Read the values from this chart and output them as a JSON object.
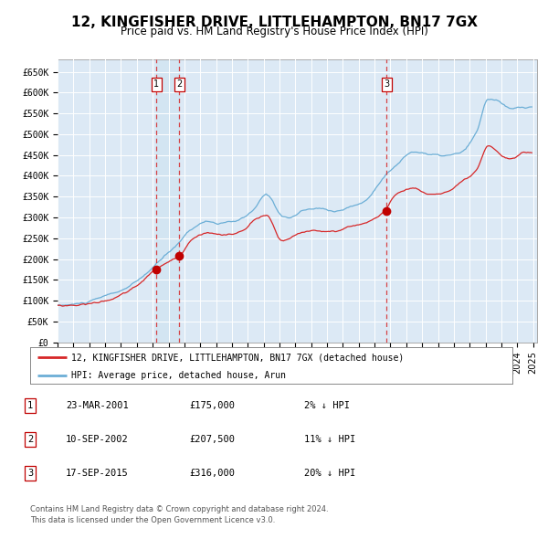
{
  "title": "12, KINGFISHER DRIVE, LITTLEHAMPTON, BN17 7GX",
  "subtitle": "Price paid vs. HM Land Registry's House Price Index (HPI)",
  "sale_dates": [
    "2001-03-23",
    "2002-09-10",
    "2015-09-17"
  ],
  "sale_prices": [
    175000,
    207500,
    316000
  ],
  "sale_labels": [
    "1",
    "2",
    "3"
  ],
  "hpi_color": "#6baed6",
  "price_color": "#d62728",
  "marker_color": "#c00000",
  "vline_color": "#d62728",
  "background_color": "#dce9f5",
  "ylabel_ticks": [
    "£0",
    "£50K",
    "£100K",
    "£150K",
    "£200K",
    "£250K",
    "£300K",
    "£350K",
    "£400K",
    "£450K",
    "£500K",
    "£550K",
    "£600K",
    "£650K"
  ],
  "ytick_values": [
    0,
    50000,
    100000,
    150000,
    200000,
    250000,
    300000,
    350000,
    400000,
    450000,
    500000,
    550000,
    600000,
    650000
  ],
  "ylim": [
    0,
    680000
  ],
  "legend_entries": [
    "12, KINGFISHER DRIVE, LITTLEHAMPTON, BN17 7GX (detached house)",
    "HPI: Average price, detached house, Arun"
  ],
  "table_data": [
    [
      "1",
      "23-MAR-2001",
      "£175,000",
      "2% ↓ HPI"
    ],
    [
      "2",
      "10-SEP-2002",
      "£207,500",
      "11% ↓ HPI"
    ],
    [
      "3",
      "17-SEP-2015",
      "£316,000",
      "20% ↓ HPI"
    ]
  ],
  "footnote": "Contains HM Land Registry data © Crown copyright and database right 2024.\nThis data is licensed under the Open Government Licence v3.0.",
  "grid_color": "#ffffff",
  "spine_color": "#aaaaaa"
}
